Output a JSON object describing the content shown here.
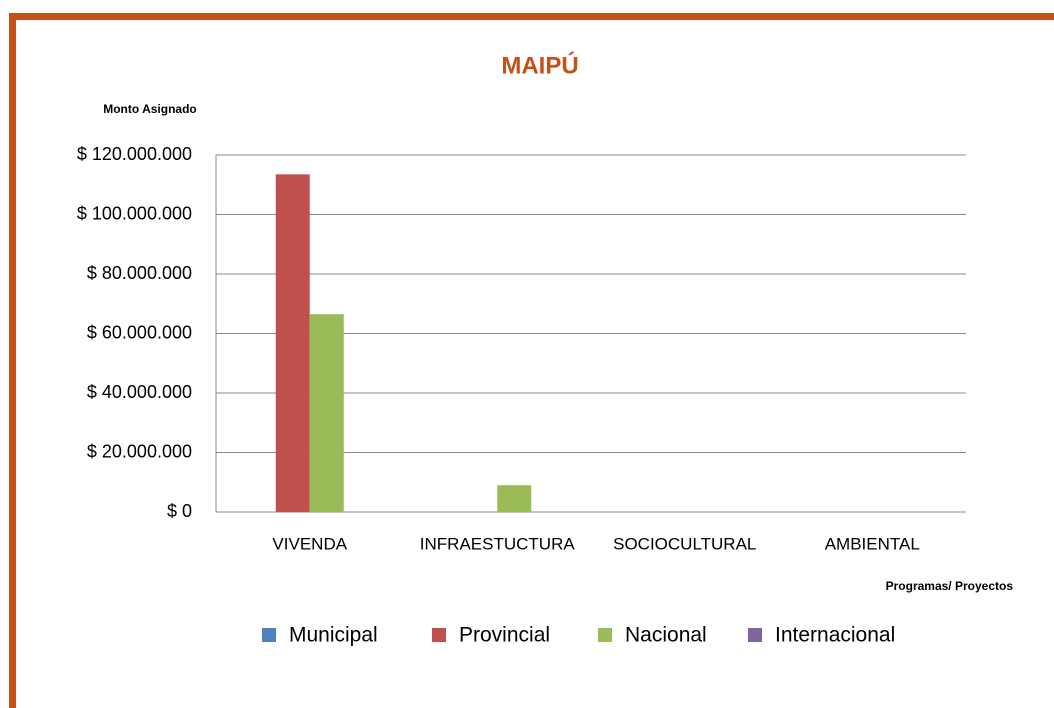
{
  "chart_data": {
    "type": "bar",
    "title": "MAIPÚ",
    "y_axis_label": "Monto Asignado",
    "x_axis_label": "Programas/ Proyectos",
    "categories": [
      "VIVENDA",
      "INFRAESTUCTURA",
      "SOCIOCULTURAL",
      "AMBIENTAL"
    ],
    "series": [
      {
        "name": "Municipal",
        "color": "#4f81bd",
        "values": [
          0,
          0,
          0,
          0
        ]
      },
      {
        "name": "Provincial",
        "color": "#c0504d",
        "values": [
          113500000,
          0,
          0,
          0
        ]
      },
      {
        "name": "Nacional",
        "color": "#9bbb59",
        "values": [
          66500000,
          9000000,
          0,
          0
        ]
      },
      {
        "name": "Internacional",
        "color": "#8064a2",
        "values": [
          0,
          0,
          0,
          0
        ]
      }
    ],
    "ylim": [
      0,
      120000000
    ],
    "yticks": [
      {
        "value": 0,
        "label": "$ 0"
      },
      {
        "value": 20000000,
        "label": "$ 20.000.000"
      },
      {
        "value": 40000000,
        "label": "$ 40.000.000"
      },
      {
        "value": 60000000,
        "label": "$ 60.000.000"
      },
      {
        "value": 80000000,
        "label": "$ 80.000.000"
      },
      {
        "value": 100000000,
        "label": "$ 100.000.000"
      },
      {
        "value": 120000000,
        "label": "$ 120.000.000"
      }
    ],
    "grid": true,
    "legend": "bottom"
  }
}
